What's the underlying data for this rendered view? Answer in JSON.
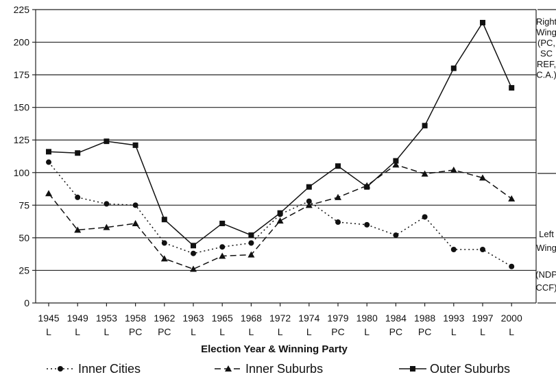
{
  "chart_data": {
    "type": "line",
    "title": "",
    "xlabel": "Election Year & Winning Party",
    "ylabel": "",
    "categories": [
      "1945",
      "1949",
      "1953",
      "1958",
      "1962",
      "1963",
      "1965",
      "1968",
      "1972",
      "1974",
      "1979",
      "1980",
      "1984",
      "1988",
      "1993",
      "1997",
      "2000"
    ],
    "parties": [
      "L",
      "L",
      "L",
      "PC",
      "PC",
      "L",
      "L",
      "L",
      "L",
      "L",
      "PC",
      "L",
      "PC",
      "PC",
      "L",
      "L",
      "L"
    ],
    "ylim": [
      0,
      225
    ],
    "yticks": [
      0,
      25,
      50,
      75,
      100,
      125,
      150,
      175,
      200,
      225
    ],
    "grid": true,
    "legend_position": "bottom",
    "series": [
      {
        "name": "Inner Cities",
        "style": "dotted",
        "marker": "circle",
        "values": [
          108,
          81,
          76,
          75,
          46,
          38,
          43,
          46,
          68,
          78,
          62,
          60,
          52,
          66,
          41,
          41,
          28
        ]
      },
      {
        "name": "Inner Suburbs",
        "style": "dashed",
        "marker": "triangle",
        "values": [
          84,
          56,
          58,
          61,
          34,
          26,
          36,
          37,
          63,
          75,
          81,
          90,
          106,
          99,
          102,
          96,
          80
        ]
      },
      {
        "name": "Outer Suburbs",
        "style": "solid",
        "marker": "square",
        "values": [
          116,
          115,
          124,
          121,
          64,
          44,
          61,
          52,
          69,
          89,
          105,
          89,
          109,
          136,
          180,
          215,
          165
        ]
      }
    ],
    "side_annotations": {
      "right_wing": [
        "Right",
        "Wing",
        "(PC,",
        "SC",
        "REF,",
        "C.A.)"
      ],
      "left_wing": [
        "Left",
        "Wing",
        "(NDP",
        "CCF)"
      ]
    },
    "colors": {
      "line": "#111111",
      "grid": "#222222"
    }
  }
}
